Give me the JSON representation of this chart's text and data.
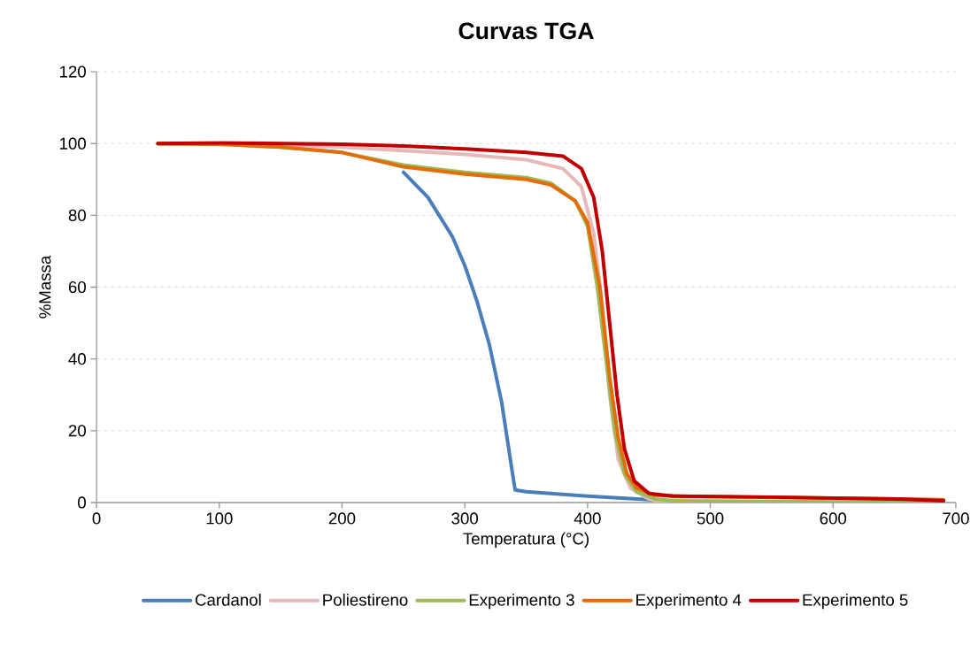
{
  "chart_data": {
    "type": "line",
    "title": "Curvas TGA",
    "xlabel": "Temperatura (°C)",
    "ylabel": "%Massa",
    "xlim": [
      0,
      700
    ],
    "ylim": [
      0,
      120
    ],
    "xticks": [
      0,
      100,
      200,
      300,
      400,
      500,
      600,
      700
    ],
    "yticks": [
      0,
      20,
      40,
      60,
      80,
      100,
      120
    ],
    "grid": "y",
    "legend": "bottom",
    "marker": "none",
    "line_style": "solid",
    "series": [
      {
        "name": "Cardanol",
        "color": "#4a7ebb",
        "x": [
          250,
          270,
          290,
          300,
          310,
          320,
          330,
          338,
          341,
          350,
          400,
          450,
          458
        ],
        "values": [
          92,
          85,
          74,
          66,
          56,
          44,
          28,
          10,
          3.5,
          3,
          1.8,
          0.8,
          0.5
        ]
      },
      {
        "name": "Poliestireno",
        "color": "#e6b9b8",
        "x": [
          50,
          150,
          200,
          250,
          300,
          350,
          380,
          395,
          405,
          412,
          418,
          425,
          435,
          450,
          460,
          690
        ],
        "values": [
          100,
          99.7,
          99,
          98,
          97,
          95.5,
          93,
          88,
          75,
          55,
          30,
          12,
          4,
          1,
          0,
          0
        ]
      },
      {
        "name": "Experimento 3",
        "color": "#9bbb59",
        "x": [
          50,
          100,
          150,
          200,
          250,
          300,
          350,
          370,
          390,
          400,
          408,
          415,
          422,
          430,
          440,
          455,
          470,
          690
        ],
        "values": [
          100,
          99.8,
          99,
          97.5,
          94,
          92,
          90.5,
          89,
          84,
          77,
          60,
          40,
          20,
          8,
          3,
          1,
          0.5,
          0
        ]
      },
      {
        "name": "Experimento 4",
        "color": "#e46c0a",
        "x": [
          50,
          100,
          150,
          200,
          250,
          300,
          350,
          370,
          390,
          400,
          410,
          418,
          425,
          432,
          440,
          455,
          470,
          600,
          690
        ],
        "values": [
          100,
          99.8,
          99,
          97.5,
          93.5,
          91.5,
          90,
          88.5,
          84,
          78,
          60,
          35,
          18,
          8,
          4,
          2,
          1.8,
          1.2,
          0.8
        ]
      },
      {
        "name": "Experimento 5",
        "color": "#c00000",
        "x": [
          50,
          100,
          150,
          200,
          250,
          300,
          350,
          380,
          395,
          405,
          412,
          418,
          424,
          430,
          438,
          450,
          470,
          550,
          650,
          690
        ],
        "values": [
          100,
          100.2,
          100,
          99.8,
          99.3,
          98.5,
          97.5,
          96.5,
          93,
          85,
          70,
          50,
          30,
          15,
          6,
          2.5,
          1.8,
          1.5,
          1,
          0.5
        ]
      }
    ]
  }
}
